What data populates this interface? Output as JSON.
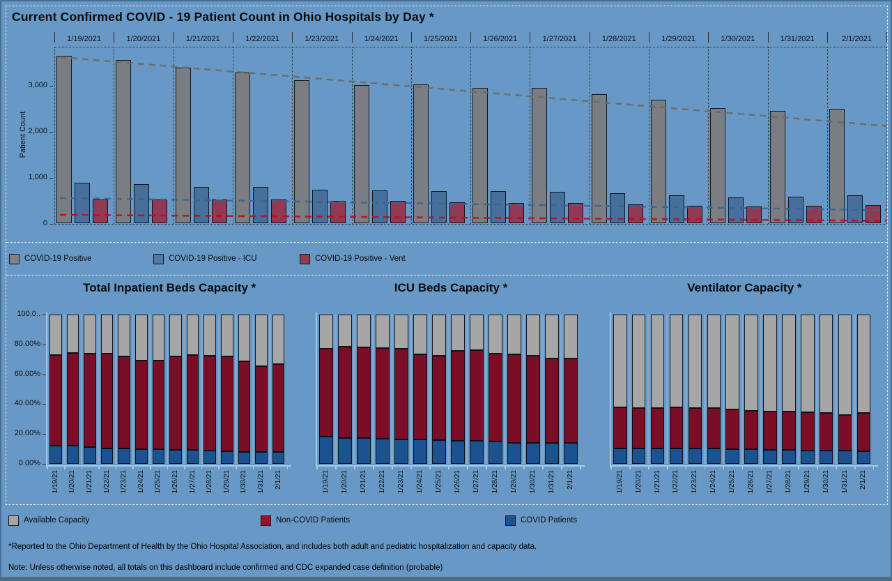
{
  "page": {
    "footnote1": "*Reported to the Ohio Department of Health by the Ohio Hospital Association, and includes both adult and pediatric hospitalization and capacity data.",
    "footnote2": "Note: Unless otherwise noted, all totals on this dashboard include confirmed and CDC expanded case definition (probable)"
  },
  "colors": {
    "background": "#6899C6",
    "positive": "#7A7D81",
    "icu": "#46709B",
    "vent": "#903A53",
    "available": "#A6A6A6",
    "noncovid": "#7A0E26",
    "covid": "#1B5390",
    "trend_positive": "#6F6A64",
    "trend_icu": "#3C6490",
    "trend_vent": "#C00A1E",
    "axis_light": "#A9C7E2"
  },
  "legend_top": {
    "items": [
      {
        "label": "COVID-19 Positive",
        "color": "#808285"
      },
      {
        "label": "COVID-19 Positive - ICU",
        "color": "#54799F"
      },
      {
        "label": "COVID-19 Positive - Vent",
        "color": "#93394F"
      }
    ]
  },
  "legend_bottom": {
    "items": [
      {
        "label": "Available Capacity",
        "color": "#A6A6A6"
      },
      {
        "label": "Non-COVID Patients",
        "color": "#98102C"
      },
      {
        "label": "COVID Patients",
        "color": "#1B5390"
      }
    ]
  },
  "chart_data": [
    {
      "id": "patient-count",
      "type": "bar",
      "title": "Current Confirmed COVID - 19 Patient Count in Ohio Hospitals by Day *",
      "xlabel": "",
      "ylabel": "Patient Count",
      "ylim": [
        0,
        3815
      ],
      "yticks": [
        0,
        1000,
        2000,
        3000
      ],
      "ytick_labels": [
        "0",
        "1,000",
        "2,000",
        "3,000"
      ],
      "grid": "dotted-vertical-separators",
      "legend_position": "below-panel",
      "categories": [
        "1/19/2021",
        "1/20/2021",
        "1/21/2021",
        "1/22/2021",
        "1/23/2021",
        "1/24/2021",
        "1/25/2021",
        "1/26/2021",
        "1/27/2021",
        "1/28/2021",
        "1/29/2021",
        "1/30/2021",
        "1/31/2021",
        "2/1/2021"
      ],
      "series": [
        {
          "name": "COVID-19 Positive",
          "color_key": "positive",
          "values": [
            3650,
            3550,
            3390,
            3280,
            3120,
            3010,
            3020,
            2950,
            2950,
            2810,
            2690,
            2510,
            2450,
            2500
          ]
        },
        {
          "name": "COVID-19 Positive - ICU",
          "color_key": "icu",
          "values": [
            880,
            860,
            800,
            790,
            730,
            720,
            710,
            700,
            690,
            660,
            620,
            570,
            590,
            610
          ]
        },
        {
          "name": "COVID-19 Positive - Vent",
          "color_key": "vent",
          "values": [
            530,
            520,
            530,
            530,
            500,
            500,
            470,
            450,
            440,
            410,
            390,
            370,
            380,
            400
          ]
        }
      ],
      "trendlines": [
        {
          "series": "COVID-19 Positive",
          "color_key": "trend_positive",
          "start": 3620,
          "end": 2120
        },
        {
          "series": "COVID-19 Positive - ICU",
          "color_key": "trend_icu",
          "start": 555,
          "end": 290
        },
        {
          "series": "COVID-19 Positive - Vent",
          "color_key": "trend_vent",
          "start": 190,
          "end": 60
        }
      ]
    },
    {
      "id": "inpatient-beds-capacity",
      "type": "stacked-bar",
      "title": "Total Inpatient Beds Capacity *",
      "ylim": [
        0,
        100
      ],
      "yticks": [
        0,
        20,
        40,
        60,
        80,
        100
      ],
      "ytick_labels": [
        "0.00%",
        "20.00%",
        "40.00%",
        "60.00%",
        "80.00%",
        "100.0.."
      ],
      "categories": [
        "1/19/21",
        "1/20/21",
        "1/21/21",
        "1/22/21",
        "1/23/21",
        "1/24/21",
        "1/25/21",
        "1/26/21",
        "1/27/21",
        "1/28/21",
        "1/29/21",
        "1/30/21",
        "1/31/21",
        "2/1/21"
      ],
      "series": [
        {
          "name": "COVID Patients",
          "color_key": "covid",
          "values": [
            12,
            12,
            11,
            10.5,
            10.5,
            10,
            10,
            9.5,
            9.5,
            9,
            8.5,
            8,
            8,
            8
          ]
        },
        {
          "name": "Non-COVID Patients",
          "color_key": "noncovid",
          "values": [
            61,
            62.5,
            63,
            63.5,
            61.5,
            59,
            59,
            62.5,
            63.5,
            63.5,
            63.5,
            60.5,
            57.5,
            59
          ]
        },
        {
          "name": "Available Capacity",
          "color_key": "available",
          "values": [
            27,
            25.5,
            26,
            26,
            28,
            31,
            31,
            28,
            27,
            27.5,
            28,
            31.5,
            34.5,
            33
          ]
        }
      ]
    },
    {
      "id": "icu-beds-capacity",
      "type": "stacked-bar",
      "title": "ICU Beds Capacity *",
      "ylim": [
        0,
        100
      ],
      "yticks": [],
      "ytick_labels": [],
      "categories": [
        "1/19/21",
        "1/20/21",
        "1/21/21",
        "1/22/21",
        "1/23/21",
        "1/24/21",
        "1/25/21",
        "1/26/21",
        "1/27/21",
        "1/28/21",
        "1/29/21",
        "1/30/21",
        "1/31/21",
        "2/1/21"
      ],
      "series": [
        {
          "name": "COVID Patients",
          "color_key": "covid",
          "values": [
            18,
            17.5,
            17.5,
            17,
            16.5,
            16.5,
            16,
            15.5,
            15.5,
            15,
            14,
            14,
            14,
            14
          ]
        },
        {
          "name": "Non-COVID Patients",
          "color_key": "noncovid",
          "values": [
            59,
            61,
            60.5,
            60.5,
            60.5,
            57,
            56.5,
            60,
            60.5,
            59,
            59.5,
            58.5,
            56.5,
            56.5
          ]
        },
        {
          "name": "Available Capacity",
          "color_key": "available",
          "values": [
            23,
            21.5,
            22,
            22.5,
            23,
            26.5,
            27.5,
            24.5,
            24,
            26,
            26.5,
            27.5,
            29.5,
            29.5
          ]
        }
      ]
    },
    {
      "id": "ventilator-capacity",
      "type": "stacked-bar",
      "title": "Ventilator Capacity *",
      "ylim": [
        0,
        100
      ],
      "yticks": [],
      "ytick_labels": [],
      "categories": [
        "1/19/21",
        "1/20/21",
        "1/21/21",
        "1/22/21",
        "1/23/21",
        "1/24/21",
        "1/25/21",
        "1/26/21",
        "1/27/21",
        "1/28/21",
        "1/29/21",
        "1/30/21",
        "1/31/21",
        "2/1/21"
      ],
      "series": [
        {
          "name": "COVID Patients",
          "color_key": "covid",
          "values": [
            10.5,
            10.5,
            10.5,
            10.5,
            10.5,
            10.5,
            10,
            10,
            9.5,
            9.5,
            9,
            9,
            9,
            8.5
          ]
        },
        {
          "name": "Non-COVID Patients",
          "color_key": "noncovid",
          "values": [
            27.5,
            27,
            27,
            27.5,
            27,
            27,
            26.5,
            25.5,
            25.5,
            25.5,
            25.5,
            25,
            23.5,
            25.5
          ]
        },
        {
          "name": "Available Capacity",
          "color_key": "available",
          "values": [
            62,
            62.5,
            62.5,
            62,
            62.5,
            62.5,
            63.5,
            64.5,
            65,
            65,
            65.5,
            66,
            67.5,
            66
          ]
        }
      ]
    }
  ]
}
